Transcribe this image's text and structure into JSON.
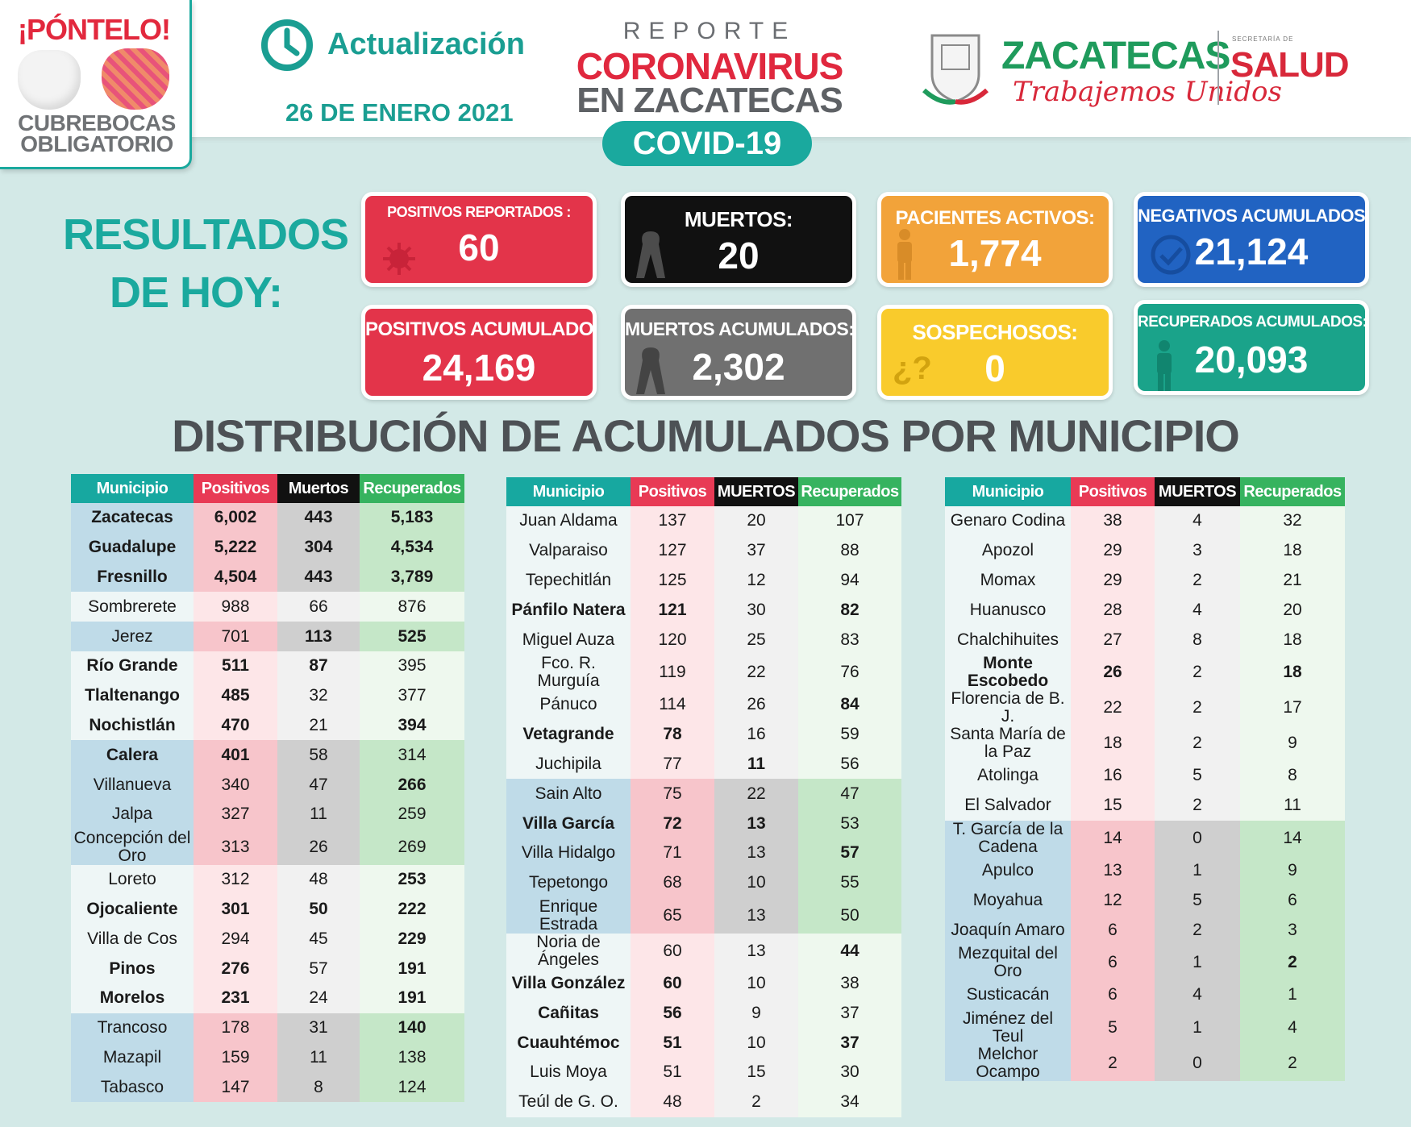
{
  "header": {
    "mask_badge": {
      "title": "¡PÓNTELO!",
      "line1": "CUBREBOCAS",
      "line2": "OBLIGATORIO"
    },
    "update_title": "Actualización",
    "update_date": "26 DE ENERO 2021",
    "report_kicker": "REPORTE",
    "report_line1": "CORONAVIRUS",
    "report_line2": "EN ZACATECAS",
    "covid_pill": "COVID-19",
    "gov_name": "ZACATECAS",
    "gov_slogan": "Trabajemos Unidos",
    "salud_small": "SECRETARÍA DE",
    "salud": "SALUD"
  },
  "today": {
    "title_line1": "RESULTADOS",
    "title_line2": "DE HOY:",
    "cards": [
      {
        "label": "POSITIVOS REPORTADOS :",
        "value": "60",
        "icon": "virus-icon",
        "color": "#e3344a"
      },
      {
        "label": "MUERTOS:",
        "value": "20",
        "icon": "mourning-ribbon-icon",
        "color": "#111111"
      },
      {
        "label": "PACIENTES ACTIVOS:",
        "value": "1,774",
        "icon": "person-icon",
        "color": "#f2a33a"
      },
      {
        "label": "NEGATIVOS ACUMULADOS:",
        "value": "21,124",
        "icon": "check-circle-icon",
        "color": "#2163c2"
      },
      {
        "label": "POSITIVOS ACUMULADOS:",
        "value": "24,169",
        "icon": "",
        "color": "#e3344a"
      },
      {
        "label": "MUERTOS ACUMULADOS:",
        "value": "2,302",
        "icon": "mourning-ribbon-icon",
        "color": "#707070"
      },
      {
        "label": "SOSPECHOSOS:",
        "value": "0",
        "icon": "question-icon",
        "color": "#f9cb2c"
      },
      {
        "label": "RECUPERADOS ACUMULADOS:",
        "value": "20,093",
        "icon": "person-icon",
        "color": "#1aa38a"
      }
    ]
  },
  "section_title": "DISTRIBUCIÓN DE ACUMULADOS POR MUNICIPIO",
  "tables": [
    {
      "headers": [
        "Municipio",
        "Positivos",
        "Muertos",
        "Recuperados"
      ],
      "rows": [
        [
          "Zacatecas",
          "6,002",
          "443",
          "5,183"
        ],
        [
          "Guadalupe",
          "5,222",
          "304",
          "4,534"
        ],
        [
          "Fresnillo",
          "4,504",
          "443",
          "3,789"
        ],
        [
          "Sombrerete",
          "988",
          "66",
          "876"
        ],
        [
          "Jerez",
          "701",
          "113",
          "525"
        ],
        [
          "Río Grande",
          "511",
          "87",
          "395"
        ],
        [
          "Tlaltenango",
          "485",
          "32",
          "377"
        ],
        [
          "Nochistlán",
          "470",
          "21",
          "394"
        ],
        [
          "Calera",
          "401",
          "58",
          "314"
        ],
        [
          "Villanueva",
          "340",
          "47",
          "266"
        ],
        [
          "Jalpa",
          "327",
          "11",
          "259"
        ],
        [
          "Concepción del Oro",
          "313",
          "26",
          "269"
        ],
        [
          "Loreto",
          "312",
          "48",
          "253"
        ],
        [
          "Ojocaliente",
          "301",
          "50",
          "222"
        ],
        [
          "Villa de Cos",
          "294",
          "45",
          "229"
        ],
        [
          "Pinos",
          "276",
          "57",
          "191"
        ],
        [
          "Morelos",
          "231",
          "24",
          "191"
        ],
        [
          "Trancoso",
          "178",
          "31",
          "140"
        ],
        [
          "Mazapil",
          "159",
          "11",
          "138"
        ],
        [
          "Tabasco",
          "147",
          "8",
          "124"
        ]
      ]
    },
    {
      "headers": [
        "Municipio",
        "Positivos",
        "MUERTOS",
        "Recuperados"
      ],
      "rows": [
        [
          "Juan Aldama",
          "137",
          "20",
          "107"
        ],
        [
          "Valparaiso",
          "127",
          "37",
          "88"
        ],
        [
          "Tepechitlán",
          "125",
          "12",
          "94"
        ],
        [
          "Pánfilo Natera",
          "121",
          "30",
          "82"
        ],
        [
          "Miguel Auza",
          "120",
          "25",
          "83"
        ],
        [
          "Fco. R. Murguía",
          "119",
          "22",
          "76"
        ],
        [
          "Pánuco",
          "114",
          "26",
          "84"
        ],
        [
          "Vetagrande",
          "78",
          "16",
          "59"
        ],
        [
          "Juchipila",
          "77",
          "11",
          "56"
        ],
        [
          "Sain Alto",
          "75",
          "22",
          "47"
        ],
        [
          "Villa García",
          "72",
          "13",
          "53"
        ],
        [
          "Villa Hidalgo",
          "71",
          "13",
          "57"
        ],
        [
          "Tepetongo",
          "68",
          "10",
          "55"
        ],
        [
          "Enrique Estrada",
          "65",
          "13",
          "50"
        ],
        [
          "Noria de Ángeles",
          "60",
          "13",
          "44"
        ],
        [
          "Villa González",
          "60",
          "10",
          "38"
        ],
        [
          "Cañitas",
          "56",
          "9",
          "37"
        ],
        [
          "Cuauhtémoc",
          "51",
          "10",
          "37"
        ],
        [
          "Luis Moya",
          "51",
          "15",
          "30"
        ],
        [
          "Teúl de G. O.",
          "48",
          "2",
          "34"
        ]
      ]
    },
    {
      "headers": [
        "Municipio",
        "Positivos",
        "MUERTOS",
        "Recuperados"
      ],
      "rows": [
        [
          "Genaro Codina",
          "38",
          "4",
          "32"
        ],
        [
          "Apozol",
          "29",
          "3",
          "18"
        ],
        [
          "Momax",
          "29",
          "2",
          "21"
        ],
        [
          "Huanusco",
          "28",
          "4",
          "20"
        ],
        [
          "Chalchihuites",
          "27",
          "8",
          "18"
        ],
        [
          "Monte Escobedo",
          "26",
          "2",
          "18"
        ],
        [
          "Florencia de B. J.",
          "22",
          "2",
          "17"
        ],
        [
          "Santa María de la Paz",
          "18",
          "2",
          "9"
        ],
        [
          "Atolinga",
          "16",
          "5",
          "8"
        ],
        [
          "El Salvador",
          "15",
          "2",
          "11"
        ],
        [
          "T. García de la Cadena",
          "14",
          "0",
          "14"
        ],
        [
          "Apulco",
          "13",
          "1",
          "9"
        ],
        [
          "Moyahua",
          "12",
          "5",
          "6"
        ],
        [
          "Joaquín Amaro",
          "6",
          "2",
          "3"
        ],
        [
          "Mezquital del Oro",
          "6",
          "1",
          "2"
        ],
        [
          "Susticacán",
          "6",
          "4",
          "1"
        ],
        [
          "Jiménez del Teul",
          "5",
          "1",
          "4"
        ],
        [
          "Melchor Ocampo",
          "2",
          "0",
          "2"
        ]
      ]
    }
  ]
}
